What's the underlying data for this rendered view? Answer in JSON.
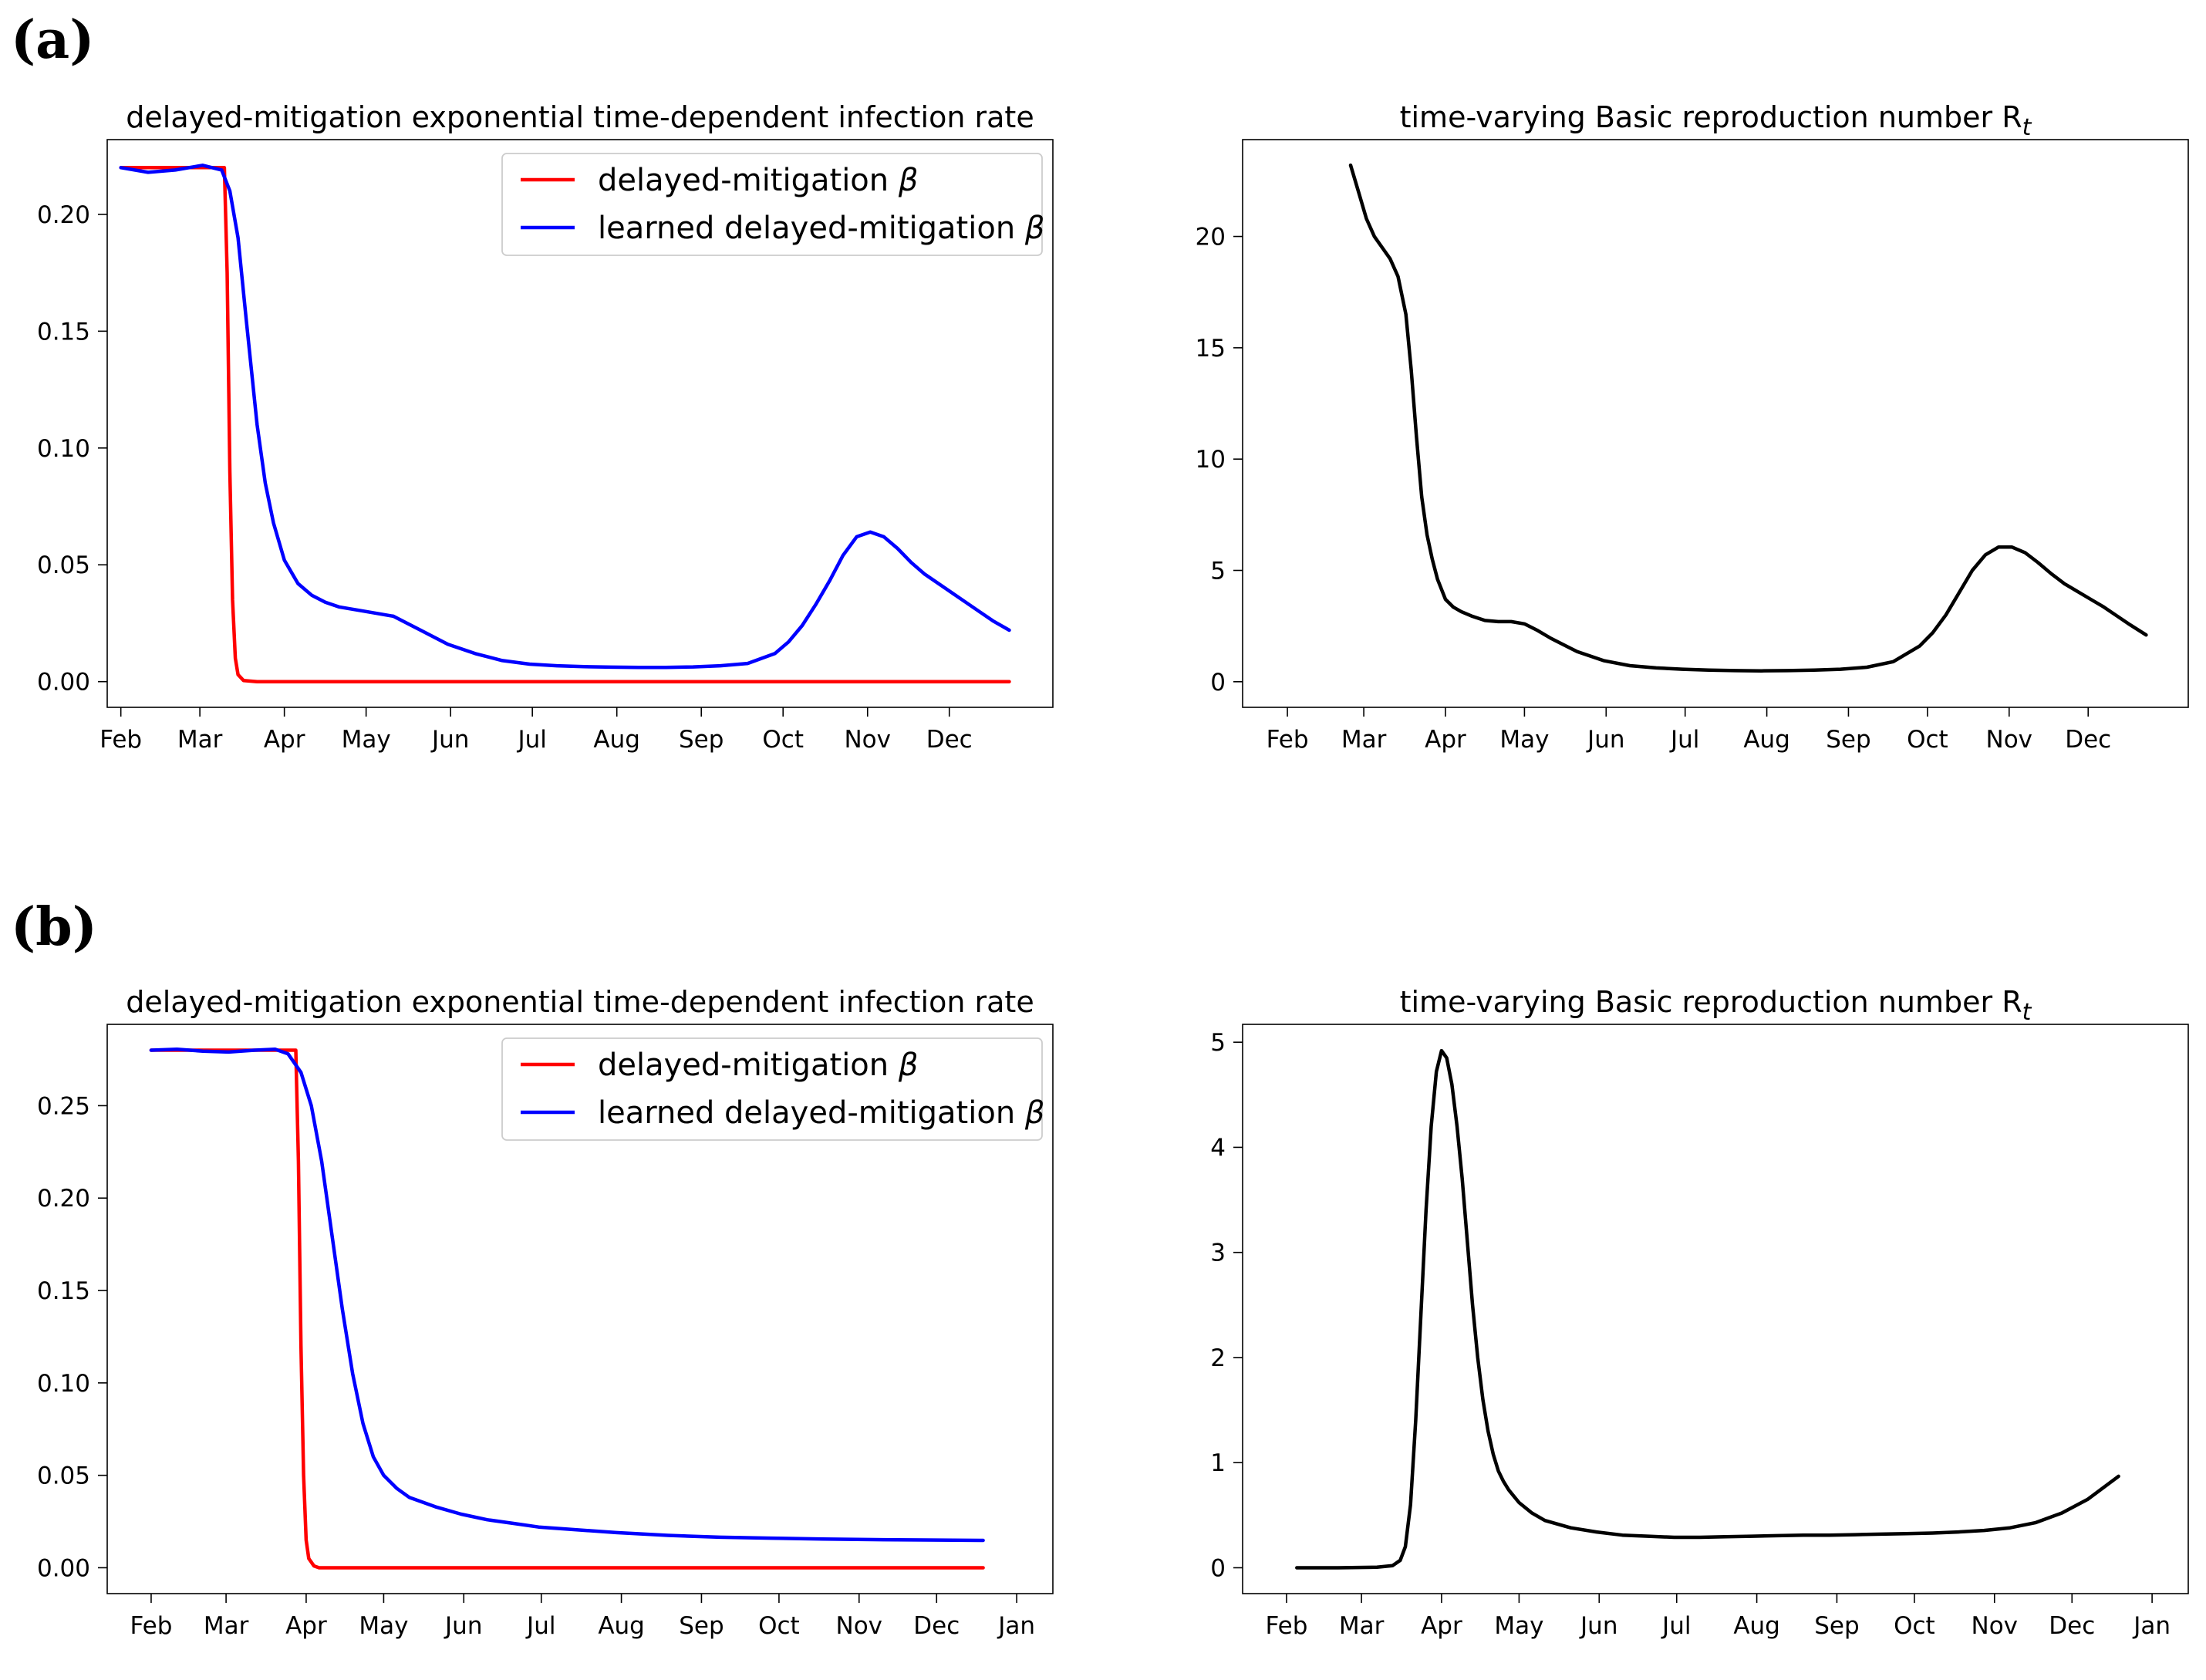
{
  "panels": {
    "a_label": "(a)",
    "b_label": "(b)"
  },
  "colors": {
    "red": "#ff0000",
    "blue": "#0000ff",
    "black": "#000000"
  },
  "chart_data": [
    {
      "id": "a-left",
      "type": "line",
      "title": "delayed-mitigation exponential time-dependent infection rate",
      "xlabel": "",
      "ylabel": "",
      "x_unit": "days since Feb 1",
      "xlim": [
        -5,
        342
      ],
      "ylim": [
        -0.011,
        0.232
      ],
      "x_ticks": [
        {
          "label": "Feb",
          "value": 0
        },
        {
          "label": "Mar",
          "value": 29
        },
        {
          "label": "Apr",
          "value": 60
        },
        {
          "label": "May",
          "value": 90
        },
        {
          "label": "Jun",
          "value": 121
        },
        {
          "label": "Jul",
          "value": 151
        },
        {
          "label": "Aug",
          "value": 182
        },
        {
          "label": "Sep",
          "value": 213
        },
        {
          "label": "Oct",
          "value": 243
        },
        {
          "label": "Nov",
          "value": 274
        },
        {
          "label": "Dec",
          "value": 304
        }
      ],
      "y_ticks": [
        {
          "label": "0.00",
          "value": 0
        },
        {
          "label": "0.05",
          "value": 0.05
        },
        {
          "label": "0.10",
          "value": 0.1
        },
        {
          "label": "0.15",
          "value": 0.15
        },
        {
          "label": "0.20",
          "value": 0.2
        }
      ],
      "legend": "top-right",
      "series": [
        {
          "name": "delayed-mitigation β",
          "legend_prefix": "delayed-mitigation ",
          "color": "#ff0000",
          "x": [
            0,
            38,
            39,
            40,
            41,
            42,
            43,
            45,
            50,
            60,
            100,
            200,
            300,
            326
          ],
          "y": [
            0.22,
            0.22,
            0.175,
            0.09,
            0.035,
            0.01,
            0.003,
            0.0005,
            0,
            0,
            0,
            0,
            0,
            0
          ]
        },
        {
          "name": "learned delayed-mitigation β",
          "legend_prefix": "learned delayed-mitigation ",
          "color": "#0000ff",
          "x": [
            0,
            10,
            20,
            30,
            37,
            40,
            43,
            46,
            50,
            53,
            56,
            60,
            65,
            70,
            75,
            80,
            90,
            100,
            110,
            120,
            130,
            140,
            150,
            160,
            170,
            180,
            190,
            200,
            210,
            220,
            230,
            240,
            245,
            250,
            255,
            260,
            265,
            270,
            275,
            280,
            285,
            290,
            295,
            300,
            305,
            310,
            315,
            320,
            326
          ],
          "y": [
            0.22,
            0.218,
            0.219,
            0.221,
            0.219,
            0.21,
            0.19,
            0.155,
            0.11,
            0.085,
            0.068,
            0.052,
            0.042,
            0.037,
            0.034,
            0.032,
            0.03,
            0.028,
            0.022,
            0.016,
            0.012,
            0.009,
            0.0075,
            0.0068,
            0.0064,
            0.0062,
            0.0061,
            0.0061,
            0.0063,
            0.0068,
            0.0078,
            0.012,
            0.017,
            0.024,
            0.033,
            0.043,
            0.054,
            0.062,
            0.064,
            0.062,
            0.057,
            0.051,
            0.046,
            0.042,
            0.038,
            0.034,
            0.03,
            0.026,
            0.022
          ]
        }
      ]
    },
    {
      "id": "a-right",
      "type": "line",
      "title": "time-varying Basic reproduction number R",
      "title_subscript": "t",
      "xlabel": "",
      "ylabel": "",
      "x_unit": "days since Feb 1",
      "xlim": [
        -17,
        342
      ],
      "ylim": [
        -1.15,
        24.35
      ],
      "x_ticks": [
        {
          "label": "Feb",
          "value": 0
        },
        {
          "label": "Mar",
          "value": 29
        },
        {
          "label": "Apr",
          "value": 60
        },
        {
          "label": "May",
          "value": 90
        },
        {
          "label": "Jun",
          "value": 121
        },
        {
          "label": "Jul",
          "value": 151
        },
        {
          "label": "Aug",
          "value": 182
        },
        {
          "label": "Sep",
          "value": 213
        },
        {
          "label": "Oct",
          "value": 243
        },
        {
          "label": "Nov",
          "value": 274
        },
        {
          "label": "Dec",
          "value": 304
        }
      ],
      "y_ticks": [
        {
          "label": "0",
          "value": 0
        },
        {
          "label": "5",
          "value": 5
        },
        {
          "label": "10",
          "value": 10
        },
        {
          "label": "15",
          "value": 15
        },
        {
          "label": "20",
          "value": 20
        }
      ],
      "legend": "none",
      "series": [
        {
          "name": "Rt",
          "color": "#000000",
          "x": [
            24,
            27,
            30,
            33,
            36,
            39,
            42,
            45,
            47,
            49,
            51,
            53,
            55,
            57,
            60,
            63,
            66,
            70,
            75,
            80,
            85,
            90,
            95,
            100,
            110,
            120,
            130,
            140,
            150,
            160,
            170,
            180,
            190,
            200,
            210,
            220,
            230,
            240,
            245,
            250,
            255,
            260,
            265,
            270,
            275,
            280,
            285,
            290,
            295,
            300,
            305,
            310,
            315,
            320,
            326
          ],
          "y": [
            23.2,
            22.0,
            20.8,
            20.0,
            19.5,
            19.0,
            18.2,
            16.5,
            14.0,
            11.0,
            8.3,
            6.6,
            5.5,
            4.6,
            3.7,
            3.35,
            3.15,
            2.95,
            2.75,
            2.7,
            2.7,
            2.6,
            2.3,
            1.95,
            1.35,
            0.95,
            0.72,
            0.62,
            0.56,
            0.52,
            0.5,
            0.49,
            0.5,
            0.52,
            0.56,
            0.65,
            0.9,
            1.6,
            2.2,
            3.0,
            4.0,
            5.0,
            5.7,
            6.05,
            6.05,
            5.8,
            5.35,
            4.85,
            4.4,
            4.05,
            3.7,
            3.35,
            2.95,
            2.55,
            2.1
          ]
        }
      ]
    },
    {
      "id": "b-left",
      "type": "line",
      "title": "delayed-mitigation exponential time-dependent infection rate",
      "xlabel": "",
      "ylabel": "",
      "x_unit": "days since Feb 1",
      "xlim": [
        -17,
        349
      ],
      "ylim": [
        -0.014,
        0.294
      ],
      "x_ticks": [
        {
          "label": "Feb",
          "value": 0
        },
        {
          "label": "Mar",
          "value": 29
        },
        {
          "label": "Apr",
          "value": 60
        },
        {
          "label": "May",
          "value": 90
        },
        {
          "label": "Jun",
          "value": 121
        },
        {
          "label": "Jul",
          "value": 151
        },
        {
          "label": "Aug",
          "value": 182
        },
        {
          "label": "Sep",
          "value": 213
        },
        {
          "label": "Oct",
          "value": 243
        },
        {
          "label": "Nov",
          "value": 274
        },
        {
          "label": "Dec",
          "value": 304
        },
        {
          "label": "Jan",
          "value": 335
        }
      ],
      "y_ticks": [
        {
          "label": "0.00",
          "value": 0
        },
        {
          "label": "0.05",
          "value": 0.05
        },
        {
          "label": "0.10",
          "value": 0.1
        },
        {
          "label": "0.15",
          "value": 0.15
        },
        {
          "label": "0.20",
          "value": 0.2
        },
        {
          "label": "0.25",
          "value": 0.25
        }
      ],
      "legend": "top-right",
      "series": [
        {
          "name": "delayed-mitigation β",
          "legend_prefix": "delayed-mitigation ",
          "color": "#ff0000",
          "x": [
            0,
            56,
            57,
            58,
            59,
            60,
            61,
            63,
            65,
            70,
            100,
            200,
            300,
            322
          ],
          "y": [
            0.28,
            0.28,
            0.22,
            0.12,
            0.05,
            0.015,
            0.005,
            0.001,
            0,
            0,
            0,
            0,
            0,
            0
          ]
        },
        {
          "name": "learned delayed-mitigation β",
          "legend_prefix": "learned delayed-mitigation ",
          "color": "#0000ff",
          "x": [
            0,
            10,
            20,
            30,
            40,
            48,
            53,
            58,
            62,
            66,
            70,
            74,
            78,
            82,
            86,
            90,
            95,
            100,
            110,
            120,
            130,
            140,
            150,
            160,
            180,
            200,
            220,
            240,
            260,
            280,
            300,
            322
          ],
          "y": [
            0.28,
            0.2805,
            0.2795,
            0.279,
            0.28,
            0.2805,
            0.278,
            0.268,
            0.25,
            0.22,
            0.18,
            0.14,
            0.105,
            0.078,
            0.06,
            0.05,
            0.043,
            0.038,
            0.033,
            0.029,
            0.026,
            0.024,
            0.022,
            0.021,
            0.019,
            0.0175,
            0.0165,
            0.016,
            0.0155,
            0.0152,
            0.015,
            0.0148
          ]
        }
      ]
    },
    {
      "id": "b-right",
      "type": "line",
      "title": "time-varying Basic reproduction number R",
      "title_subscript": "t",
      "xlabel": "",
      "ylabel": "",
      "x_unit": "days since Feb 1",
      "xlim": [
        -17,
        349
      ],
      "ylim": [
        -0.246,
        5.17
      ],
      "x_ticks": [
        {
          "label": "Feb",
          "value": 0
        },
        {
          "label": "Mar",
          "value": 29
        },
        {
          "label": "Apr",
          "value": 60
        },
        {
          "label": "May",
          "value": 90
        },
        {
          "label": "Jun",
          "value": 121
        },
        {
          "label": "Jul",
          "value": 151
        },
        {
          "label": "Aug",
          "value": 182
        },
        {
          "label": "Sep",
          "value": 213
        },
        {
          "label": "Oct",
          "value": 243
        },
        {
          "label": "Nov",
          "value": 274
        },
        {
          "label": "Dec",
          "value": 304
        },
        {
          "label": "Jan",
          "value": 335
        }
      ],
      "y_ticks": [
        {
          "label": "0",
          "value": 0
        },
        {
          "label": "1",
          "value": 1
        },
        {
          "label": "2",
          "value": 2
        },
        {
          "label": "3",
          "value": 3
        },
        {
          "label": "4",
          "value": 4
        },
        {
          "label": "5",
          "value": 5
        }
      ],
      "legend": "none",
      "series": [
        {
          "name": "Rt",
          "color": "#000000",
          "x": [
            4,
            20,
            35,
            41,
            44,
            46,
            48,
            50,
            52,
            54,
            56,
            58,
            60,
            62,
            64,
            66,
            68,
            70,
            72,
            74,
            76,
            78,
            80,
            82,
            84,
            86,
            88,
            90,
            95,
            100,
            110,
            120,
            130,
            140,
            150,
            160,
            170,
            180,
            190,
            200,
            210,
            220,
            230,
            240,
            250,
            260,
            270,
            280,
            290,
            300,
            310,
            322
          ],
          "y": [
            0,
            0,
            0.005,
            0.02,
            0.07,
            0.2,
            0.6,
            1.4,
            2.4,
            3.4,
            4.2,
            4.72,
            4.92,
            4.85,
            4.6,
            4.2,
            3.7,
            3.1,
            2.5,
            2.0,
            1.6,
            1.3,
            1.08,
            0.92,
            0.82,
            0.74,
            0.68,
            0.62,
            0.52,
            0.45,
            0.38,
            0.34,
            0.31,
            0.3,
            0.29,
            0.29,
            0.295,
            0.3,
            0.305,
            0.31,
            0.31,
            0.315,
            0.32,
            0.325,
            0.33,
            0.34,
            0.355,
            0.38,
            0.43,
            0.52,
            0.65,
            0.87
          ]
        }
      ]
    }
  ]
}
